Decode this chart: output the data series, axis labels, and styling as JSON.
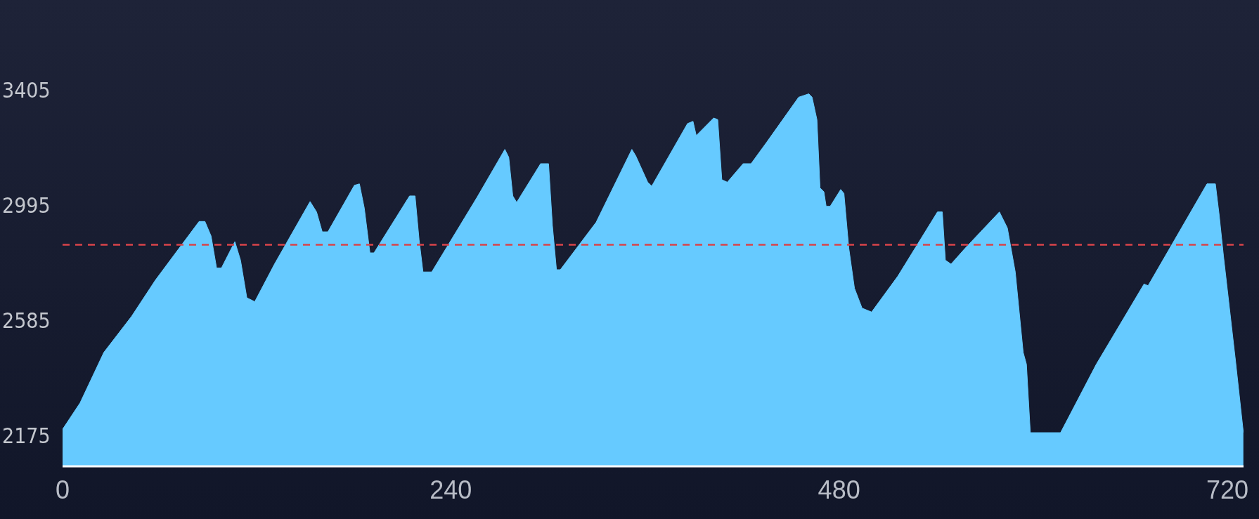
{
  "chart_data": {
    "type": "area",
    "xlim": [
      0,
      730
    ],
    "xticks": [
      0,
      240,
      480,
      720
    ],
    "ylim": [
      2065,
      3715
    ],
    "yticks": [
      2175,
      2585,
      2995,
      3405
    ],
    "grid": false,
    "legend": false,
    "x": [
      0,
      10.8,
      25.5,
      42.7,
      57.4,
      72.1,
      84.4,
      88,
      91.8,
      95.2,
      98.2,
      106.5,
      110,
      113.9,
      118.8,
      131,
      153,
      157,
      160.5,
      164,
      180.4,
      183.5,
      186.5,
      190,
      192.5,
      214.5,
      217.9,
      220.4,
      222.8,
      228.2,
      256.2,
      273.4,
      275.8,
      278.3,
      280.7,
      295.5,
      300.4,
      302.8,
      305.3,
      307.7,
      329.8,
      351.9,
      354.3,
      361.7,
      364.2,
      386.3,
      389.7,
      391.7,
      402.5,
      405,
      407.5,
      410.9,
      420.7,
      425.6,
      435.3,
      455,
      461.3,
      463.3,
      466.3,
      468.2,
      470.6,
      472,
      474.5,
      481,
      483,
      486,
      489.5,
      494.2,
      500.1,
      516.3,
      540.8,
      543.8,
      545.7,
      549.2,
      558,
      579.1,
      584,
      588.9,
      593.8,
      595.8,
      598.2,
      616.9,
      639,
      668.5,
      671,
      707.4,
      712.6,
      715,
      717.6,
      725,
      729.9
    ],
    "series": [
      {
        "color": "#66caff",
        "values": [
          2197,
          2291,
          2471,
          2600,
          2729,
          2843,
          2938,
          2938,
          2886,
          2772,
          2772,
          2866,
          2800,
          2666,
          2652,
          2786,
          3009,
          2972,
          2901,
          2901,
          3067,
          3072,
          2986,
          2826,
          2826,
          3029,
          3029,
          2872,
          2758,
          2758,
          3024,
          3195,
          3167,
          3029,
          3006,
          3144,
          3144,
          2923,
          2766,
          2766,
          2935,
          3195,
          3172,
          3078,
          3064,
          3287,
          3295,
          3244,
          3307,
          3301,
          3087,
          3078,
          3144,
          3144,
          3221,
          3381,
          3393,
          3381,
          3301,
          3058,
          3044,
          2992,
          2992,
          3052,
          3038,
          2843,
          2700,
          2629,
          2615,
          2743,
          2972,
          2972,
          2800,
          2786,
          2843,
          2972,
          2915,
          2758,
          2471,
          2429,
          2185,
          2185,
          2429,
          2715,
          2709,
          3072,
          3072,
          2958,
          2815,
          2443,
          2185
        ]
      }
    ],
    "ref_lines": [
      {
        "axis": "y",
        "value": 2855,
        "color": "#d9434a",
        "line_style": "dashed"
      }
    ]
  }
}
